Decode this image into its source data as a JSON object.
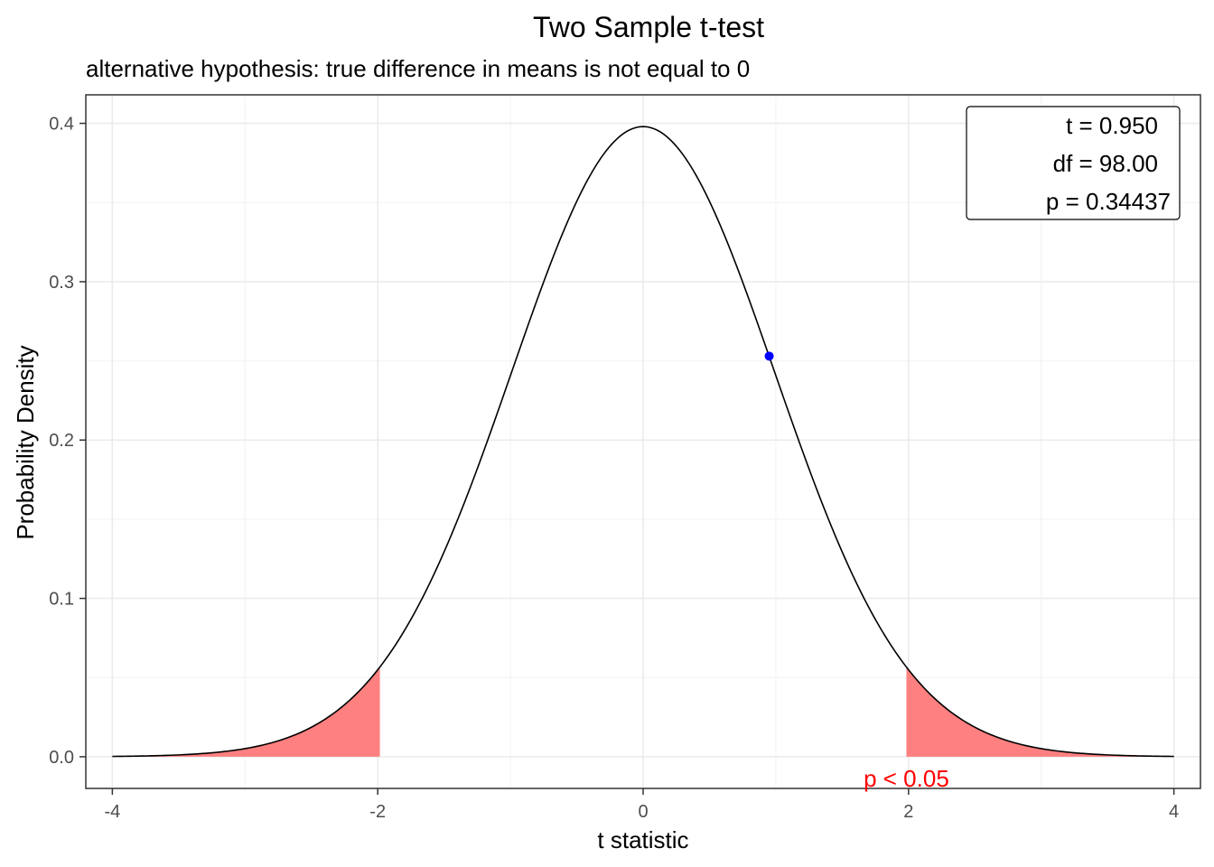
{
  "chart_data": {
    "type": "line",
    "title": "Two Sample t-test",
    "subtitle": "alternative hypothesis: true difference in means is not equal to 0",
    "xlabel": "t statistic",
    "ylabel": "Probability Density",
    "xlim": [
      -4.2,
      4.2
    ],
    "ylim": [
      -0.02,
      0.418
    ],
    "x_ticks": [
      -4,
      -2,
      0,
      2,
      4
    ],
    "x_tick_labels": [
      "-4",
      "-2",
      "0",
      "2",
      "4"
    ],
    "y_ticks": [
      0.0,
      0.1,
      0.2,
      0.3,
      0.4
    ],
    "y_tick_labels": [
      "0.0",
      "0.1",
      "0.2",
      "0.3",
      "0.4"
    ],
    "grid": true,
    "distribution": {
      "name": "t",
      "df": 98.0,
      "x_range": [
        -4,
        4
      ]
    },
    "rejection_region": {
      "lower": -1.984,
      "upper": 1.984,
      "alpha": 0.05,
      "color": "#ff8080"
    },
    "observed_point": {
      "t": 0.95,
      "density": 0.253,
      "color": "#0000ff"
    },
    "stat_box": {
      "t_label": "t = 0.950",
      "df_label": "df = 98.00",
      "p_label": "p = 0.34437",
      "position": "top-right"
    },
    "annotation": {
      "text": "p < 0.05",
      "color": "#ff0000",
      "x": 1.984
    }
  }
}
